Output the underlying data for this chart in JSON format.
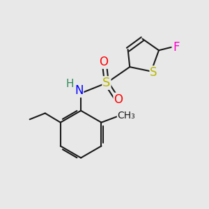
{
  "bg_color": "#e8e8e8",
  "bond_color": "#1a1a1a",
  "N_color": "#0000ff",
  "S_color": "#b8b800",
  "O_color": "#ff0000",
  "F_color": "#ff00cc",
  "H_color": "#2e8b57",
  "line_width": 1.5,
  "font_size": 12,
  "figsize": [
    3.0,
    3.0
  ],
  "dpi": 100,
  "xlim": [
    0,
    10
  ],
  "ylim": [
    0,
    10
  ]
}
